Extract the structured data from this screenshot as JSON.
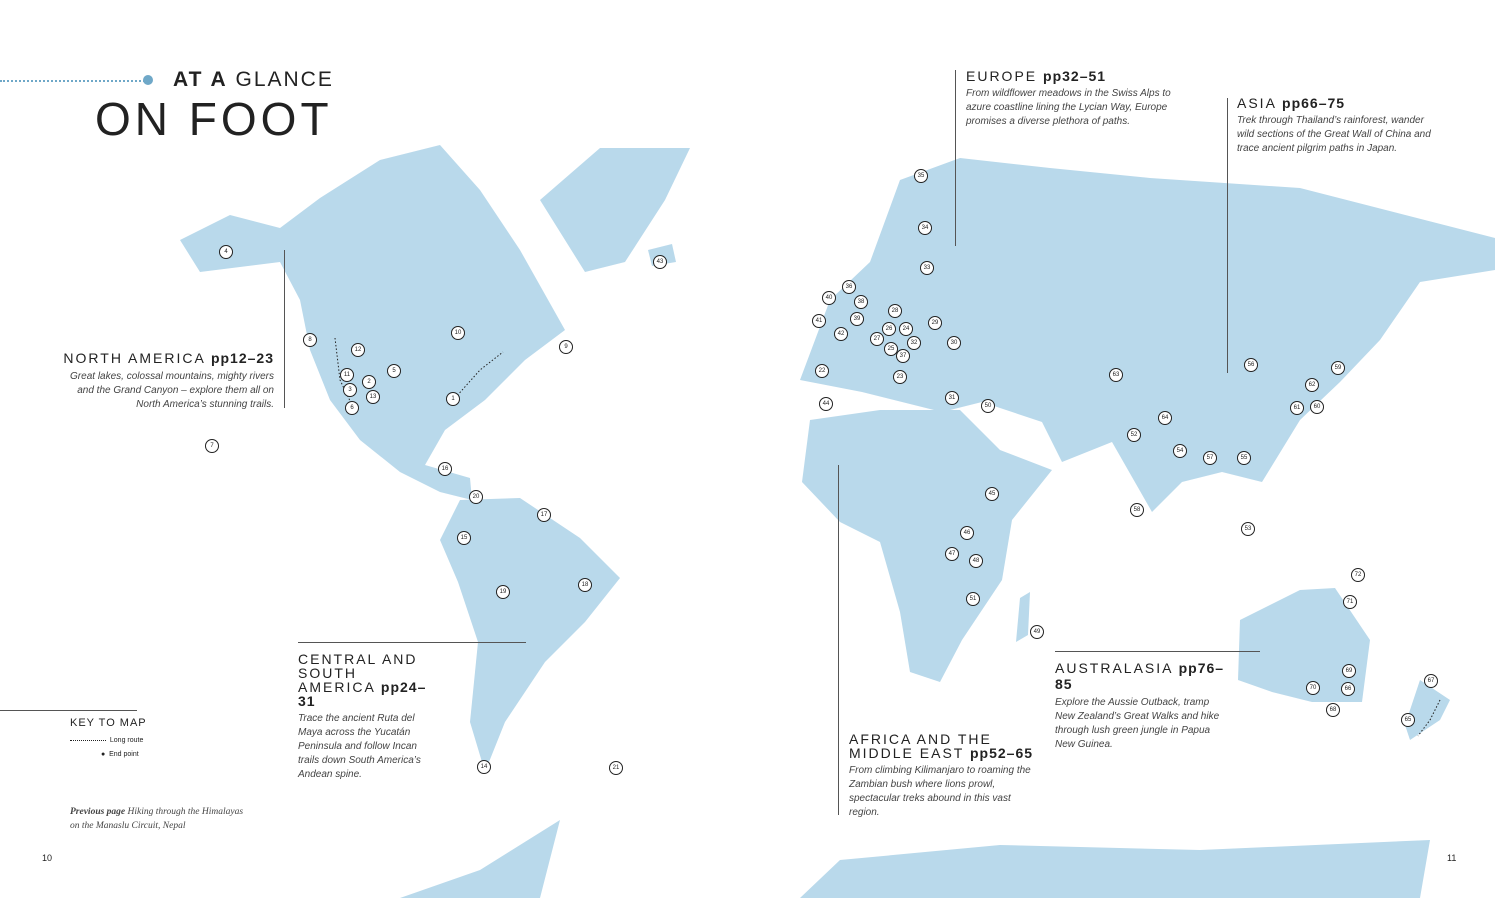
{
  "title": {
    "kicker_bold": "AT A",
    "kicker_rest": "GLANCE",
    "main": "ON FOOT"
  },
  "regions": {
    "north_america": {
      "heading": "NORTH AMERICA",
      "pages": "pp12–23",
      "text": "Great lakes, colossal mountains, mighty rivers and the Grand Canyon – explore them all on North America’s stunning trails."
    },
    "central_south_america": {
      "heading": "CENTRAL AND SOUTH AMERICA",
      "pages": "pp24–31",
      "text": "Trace the ancient Ruta del Maya across the Yucatán Peninsula and follow Incan trails down South America’s Andean spine."
    },
    "europe": {
      "heading": "EUROPE",
      "pages": "pp32–51",
      "text": "From wildflower meadows in the Swiss Alps to azure coastline lining the Lycian Way, Europe promises a diverse plethora of paths."
    },
    "asia": {
      "heading": "ASIA",
      "pages": "pp66–75",
      "text": "Trek through Thailand’s rainforest, wander wild sections of the Great Wall of China and trace ancient pilgrim paths in Japan."
    },
    "africa": {
      "heading": "AFRICA AND THE MIDDLE EAST",
      "pages": "pp52–65",
      "text": "From climbing Kilimanjaro to roaming the Zambian bush where lions prowl, spectacular treks abound in this vast region."
    },
    "australasia": {
      "heading": "AUSTRALASIA",
      "pages": "pp76–85",
      "text": "Explore the Aussie Outback, tramp New Zealand’s Great Walks and hike through lush green jungle in Papua New Guinea."
    }
  },
  "key": {
    "title": "KEY TO MAP",
    "long_route": "Long route",
    "end_point": "End point"
  },
  "caption": {
    "bold": "Previous page",
    "text": "Hiking through the Himalayas on the Manaslu Circuit, Nepal"
  },
  "page_numbers": {
    "left": "10",
    "right": "11"
  },
  "markers": [
    "1",
    "2",
    "3",
    "4",
    "5",
    "6",
    "7",
    "8",
    "9",
    "10",
    "11",
    "12",
    "13",
    "14",
    "15",
    "16",
    "17",
    "18",
    "19",
    "20",
    "21",
    "22",
    "23",
    "24",
    "25",
    "26",
    "27",
    "28",
    "29",
    "30",
    "31",
    "32",
    "33",
    "34",
    "35",
    "36",
    "37",
    "38",
    "39",
    "40",
    "41",
    "42",
    "43",
    "44",
    "45",
    "46",
    "47",
    "48",
    "49",
    "50",
    "51",
    "52",
    "53",
    "54",
    "55",
    "56",
    "57",
    "58",
    "59",
    "60",
    "61",
    "62",
    "63",
    "64",
    "65",
    "66",
    "67",
    "68",
    "69",
    "70",
    "71",
    "72"
  ],
  "colors": {
    "land": "#b9d9eb",
    "accent": "#6fa8c8"
  }
}
